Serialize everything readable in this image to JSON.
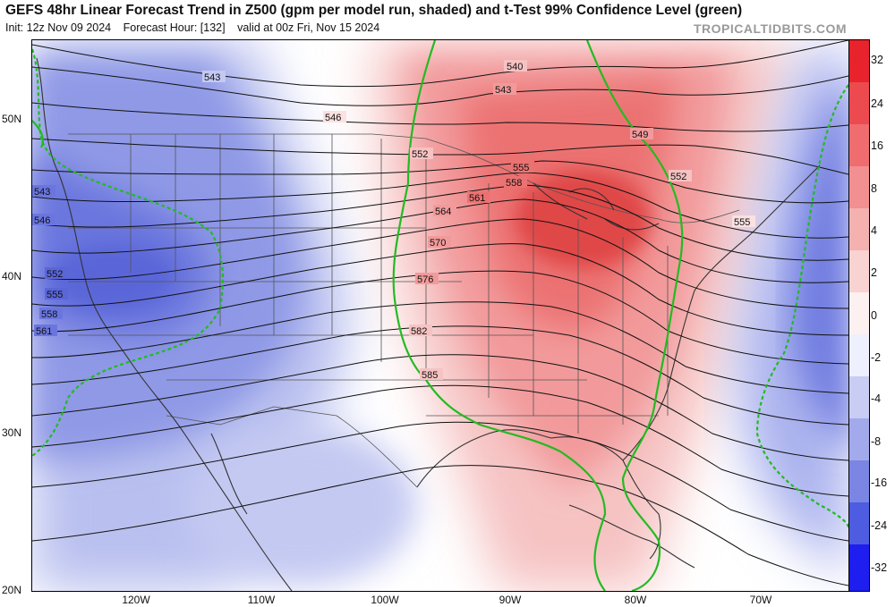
{
  "title": "GEFS 48hr Linear Forecast Trend in Z500 (gpm per model run, shaded) and t-Test 99% Confidence Level (green)",
  "subtitle": {
    "init": "Init: 12z Nov 09 2024",
    "forecast_hour": "Forecast Hour: [132]",
    "valid": "valid at 00z Fri, Nov 15 2024"
  },
  "brand": "TROPICALTIDBITS.COM",
  "colors": {
    "positive": "#e8323a",
    "negative": "#3f4fd8",
    "confidence": "#22bb22",
    "contour": "#111111"
  },
  "latitude_labels": [
    "50N",
    "40N",
    "30N",
    "20N"
  ],
  "longitude_labels": [
    "120W",
    "110W",
    "100W",
    "90W",
    "80W",
    "70W"
  ],
  "colorbar_labels": [
    "32",
    "24",
    "16",
    "8",
    "4",
    "2",
    "0",
    "-2",
    "-4",
    "-8",
    "-16",
    "-24",
    "-32"
  ],
  "contour_labels": [
    "540",
    "543",
    "543",
    "546",
    "549",
    "552",
    "552",
    "555",
    "555",
    "558",
    "561",
    "564",
    "570",
    "576",
    "582",
    "585",
    "543",
    "546",
    "552",
    "555",
    "558",
    "561"
  ]
}
